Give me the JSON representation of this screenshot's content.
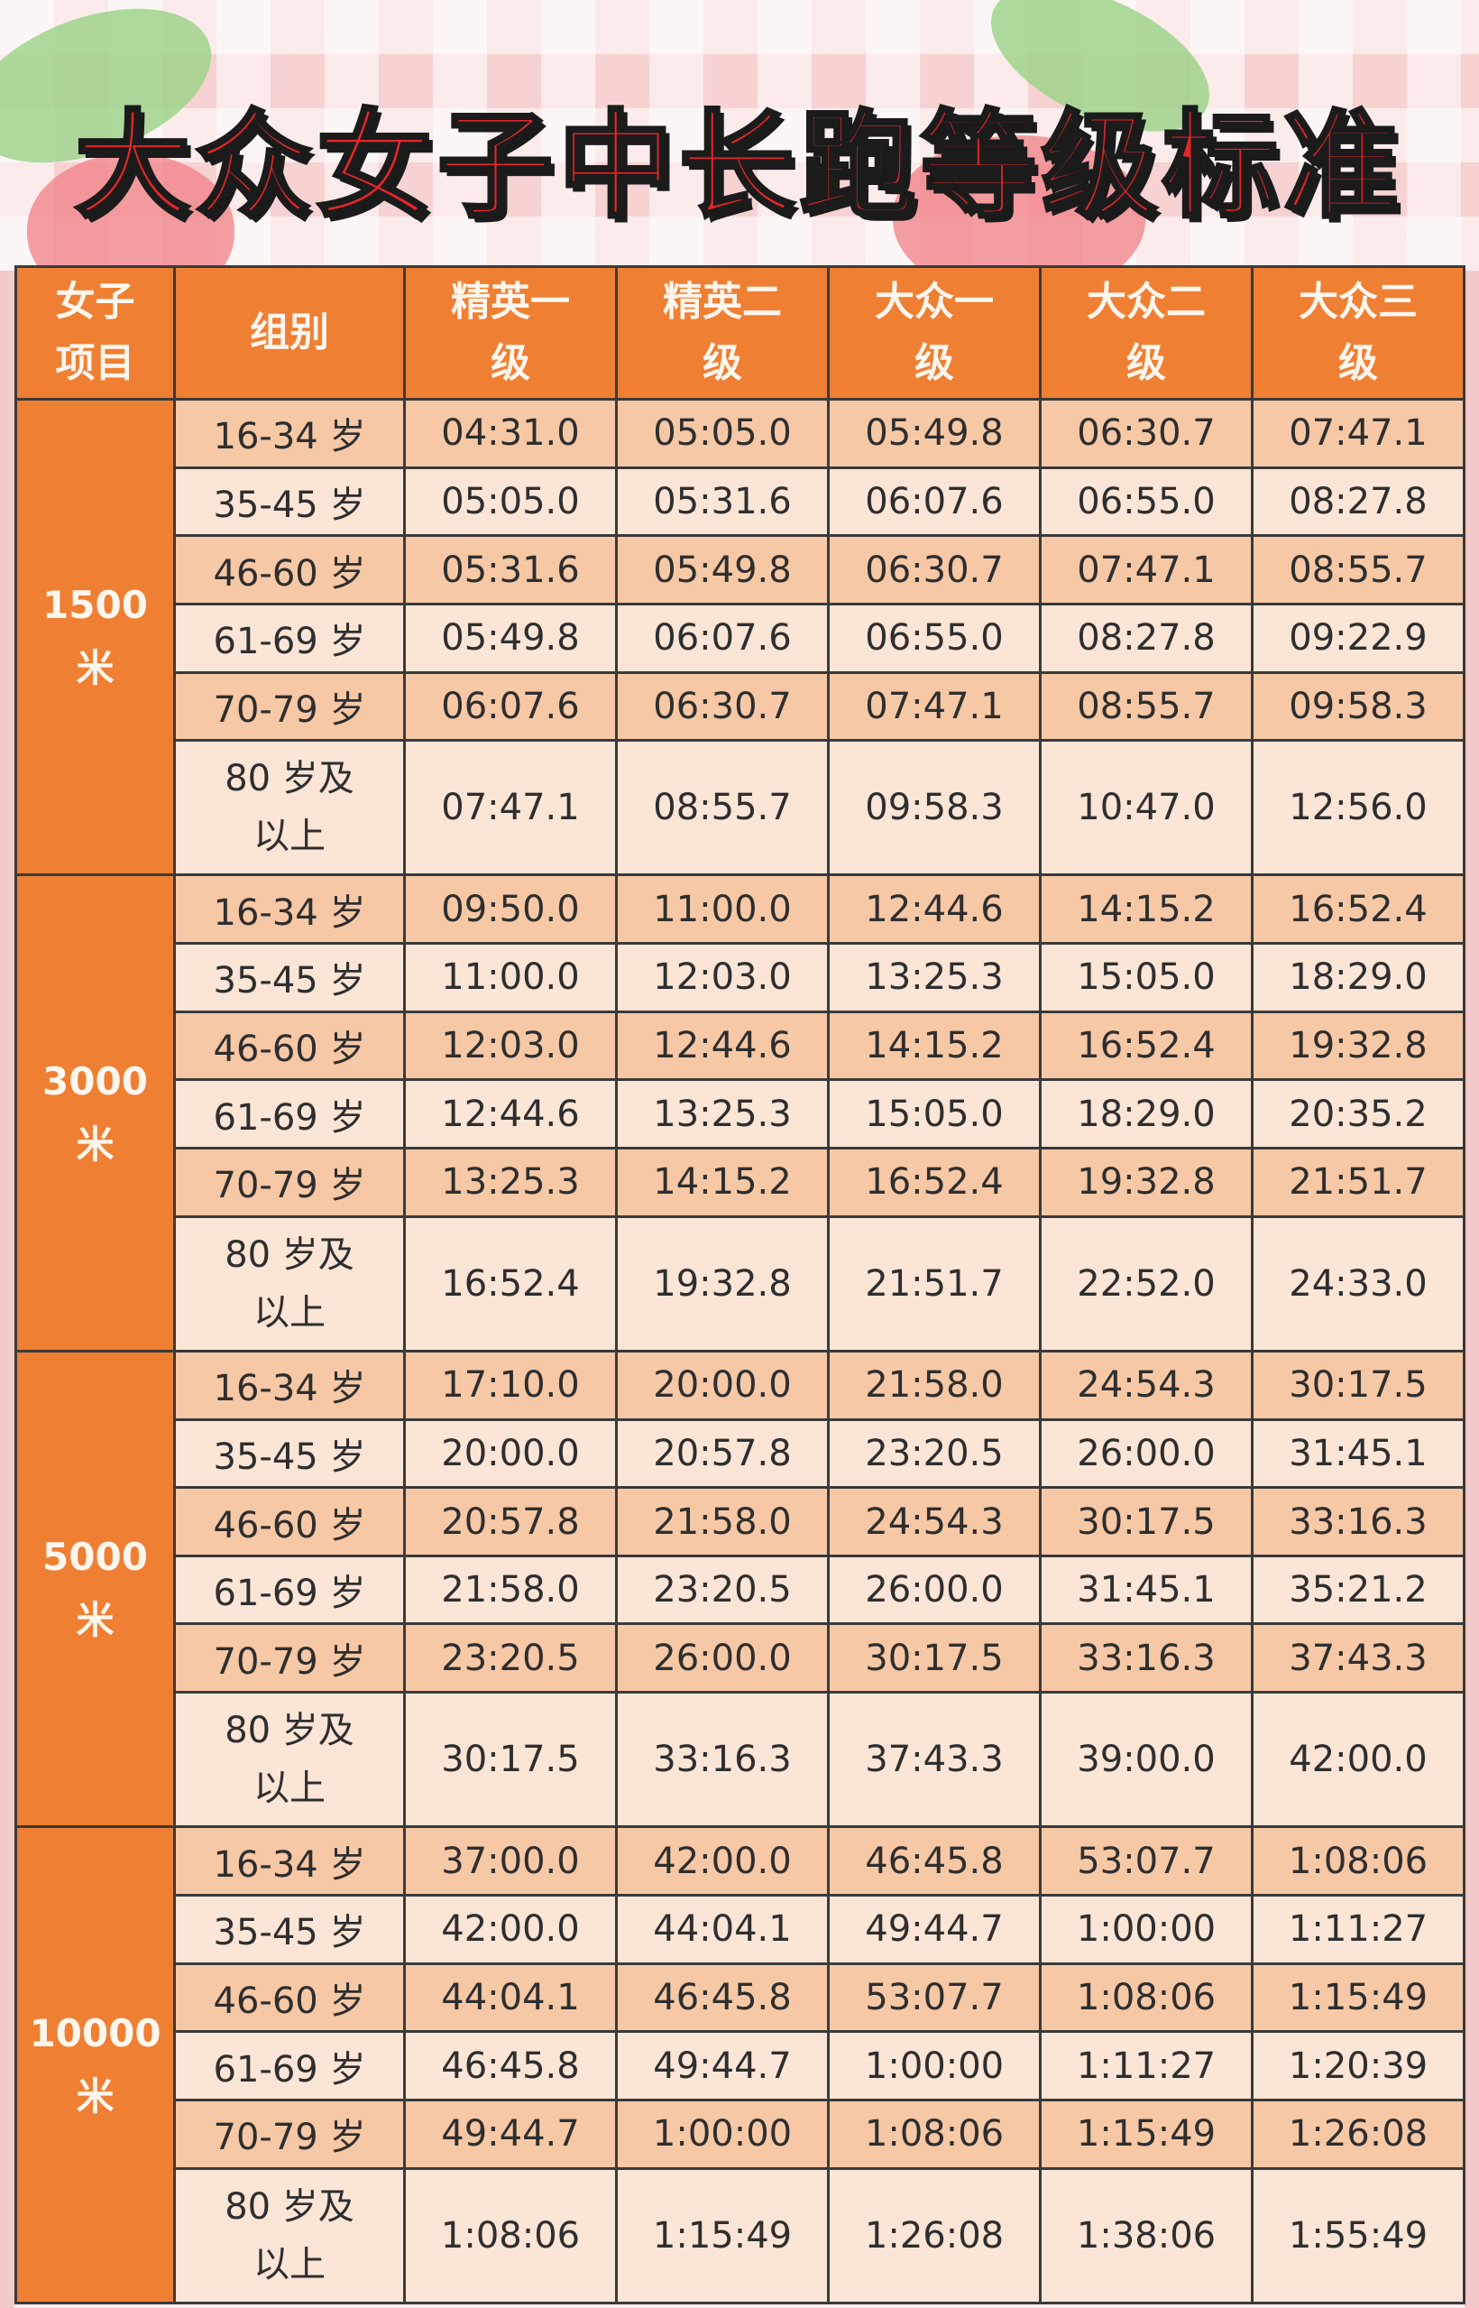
{
  "title": "大众女子中长跑等级标准",
  "table": {
    "header": [
      "女子\n项目",
      "组别",
      "精英一\n级",
      "精英二\n级",
      "大众一\n级",
      "大众二\n级",
      "大众三\n级"
    ],
    "sections": [
      {
        "event": "1500\n米",
        "rows": [
          {
            "group": "16-34 岁",
            "values": [
              "04:31.0",
              "05:05.0",
              "05:49.8",
              "06:30.7",
              "07:47.1"
            ]
          },
          {
            "group": "35-45 岁",
            "values": [
              "05:05.0",
              "05:31.6",
              "06:07.6",
              "06:55.0",
              "08:27.8"
            ]
          },
          {
            "group": "46-60 岁",
            "values": [
              "05:31.6",
              "05:49.8",
              "06:30.7",
              "07:47.1",
              "08:55.7"
            ]
          },
          {
            "group": "61-69 岁",
            "values": [
              "05:49.8",
              "06:07.6",
              "06:55.0",
              "08:27.8",
              "09:22.9"
            ]
          },
          {
            "group": "70-79 岁",
            "values": [
              "06:07.6",
              "06:30.7",
              "07:47.1",
              "08:55.7",
              "09:58.3"
            ]
          },
          {
            "group": "80 岁及\n以上",
            "values": [
              "07:47.1",
              "08:55.7",
              "09:58.3",
              "10:47.0",
              "12:56.0"
            ]
          }
        ]
      },
      {
        "event": "3000\n米",
        "rows": [
          {
            "group": "16-34 岁",
            "values": [
              "09:50.0",
              "11:00.0",
              "12:44.6",
              "14:15.2",
              "16:52.4"
            ]
          },
          {
            "group": "35-45 岁",
            "values": [
              "11:00.0",
              "12:03.0",
              "13:25.3",
              "15:05.0",
              "18:29.0"
            ]
          },
          {
            "group": "46-60 岁",
            "values": [
              "12:03.0",
              "12:44.6",
              "14:15.2",
              "16:52.4",
              "19:32.8"
            ]
          },
          {
            "group": "61-69 岁",
            "values": [
              "12:44.6",
              "13:25.3",
              "15:05.0",
              "18:29.0",
              "20:35.2"
            ]
          },
          {
            "group": "70-79 岁",
            "values": [
              "13:25.3",
              "14:15.2",
              "16:52.4",
              "19:32.8",
              "21:51.7"
            ]
          },
          {
            "group": "80 岁及\n以上",
            "values": [
              "16:52.4",
              "19:32.8",
              "21:51.7",
              "22:52.0",
              "24:33.0"
            ]
          }
        ]
      },
      {
        "event": "5000\n米",
        "rows": [
          {
            "group": "16-34 岁",
            "values": [
              "17:10.0",
              "20:00.0",
              "21:58.0",
              "24:54.3",
              "30:17.5"
            ]
          },
          {
            "group": "35-45 岁",
            "values": [
              "20:00.0",
              "20:57.8",
              "23:20.5",
              "26:00.0",
              "31:45.1"
            ]
          },
          {
            "group": "46-60 岁",
            "values": [
              "20:57.8",
              "21:58.0",
              "24:54.3",
              "30:17.5",
              "33:16.3"
            ]
          },
          {
            "group": "61-69 岁",
            "values": [
              "21:58.0",
              "23:20.5",
              "26:00.0",
              "31:45.1",
              "35:21.2"
            ]
          },
          {
            "group": "70-79 岁",
            "values": [
              "23:20.5",
              "26:00.0",
              "30:17.5",
              "33:16.3",
              "37:43.3"
            ]
          },
          {
            "group": "80 岁及\n以上",
            "values": [
              "30:17.5",
              "33:16.3",
              "37:43.3",
              "39:00.0",
              "42:00.0"
            ]
          }
        ]
      },
      {
        "event": "10000\n米",
        "rows": [
          {
            "group": "16-34 岁",
            "values": [
              "37:00.0",
              "42:00.0",
              "46:45.8",
              "53:07.7",
              "1:08:06"
            ]
          },
          {
            "group": "35-45 岁",
            "values": [
              "42:00.0",
              "44:04.1",
              "49:44.7",
              "1:00:00",
              "1:11:27"
            ]
          },
          {
            "group": "46-60 岁",
            "values": [
              "44:04.1",
              "46:45.8",
              "53:07.7",
              "1:08:06",
              "1:15:49"
            ]
          },
          {
            "group": "61-69 岁",
            "values": [
              "46:45.8",
              "49:44.7",
              "1:00:00",
              "1:11:27",
              "1:20:39"
            ]
          },
          {
            "group": "70-79 岁",
            "values": [
              "49:44.7",
              "1:00:00",
              "1:08:06",
              "1:15:49",
              "1:26:08"
            ]
          },
          {
            "group": "80 岁及\n以上",
            "values": [
              "1:08:06",
              "1:15:49",
              "1:26:08",
              "1:38:06",
              "1:55:49"
            ]
          }
        ]
      }
    ]
  }
}
